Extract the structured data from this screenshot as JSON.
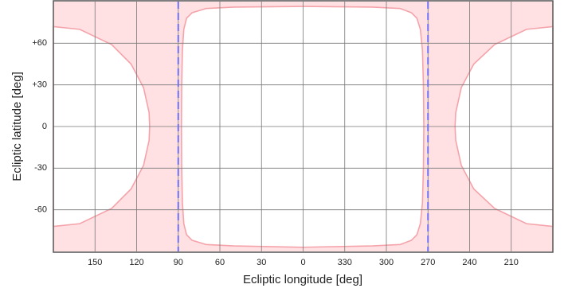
{
  "chart_data": {
    "type": "region",
    "x_label": "Ecliptic longitude [deg]",
    "y_label": "Ecliptic latitude [deg]",
    "xlim": [
      180,
      -180
    ],
    "ylim": [
      -90,
      90
    ],
    "xticks": [
      150,
      120,
      90,
      60,
      30,
      0,
      {
        "value": -30,
        "label": "330"
      },
      {
        "value": -60,
        "label": "300"
      },
      {
        "value": -90,
        "label": "270"
      },
      {
        "value": -120,
        "label": "240"
      },
      {
        "value": -150,
        "label": "210"
      }
    ],
    "yticks": [
      {
        "value": 60,
        "label": "+60"
      },
      {
        "value": 30,
        "label": "+30"
      },
      0,
      -30,
      -60
    ],
    "grid": true,
    "shade_color": "#ffe1e4",
    "boundary_color": "#f5a3aa",
    "regions": [
      {
        "x": [
          87.7,
          87.5,
          87,
          86,
          84,
          80,
          70,
          50,
          0,
          -50,
          -70,
          -78,
          -82,
          -84.5,
          -86,
          -86.7,
          -87,
          -86.7,
          -86,
          -84.5,
          -82,
          -78,
          -70,
          -50,
          0,
          50,
          70,
          80,
          84,
          86,
          87,
          87.5
        ],
        "y": [
          0,
          30,
          55,
          70,
          78,
          82,
          85,
          86,
          86.5,
          86,
          85,
          82,
          78,
          70,
          55,
          30,
          0,
          -30,
          -55,
          -70,
          -78,
          -82,
          -85,
          -86,
          -87,
          -86,
          -85,
          -82,
          -78,
          -70,
          -55,
          -30
        ]
      },
      {
        "x": [
          180,
          161,
          138,
          124,
          115,
          111,
          110.6,
          111,
          115,
          124,
          138,
          161,
          180
        ],
        "y": [
          72,
          70,
          59,
          45,
          28,
          10,
          0,
          -10,
          -28,
          -45,
          -59,
          -70,
          -72
        ]
      },
      {
        "x": [
          -180,
          -161,
          -138,
          -123,
          -114,
          -110,
          -109.5,
          -110,
          -114,
          -123,
          -138,
          -161,
          -180
        ],
        "y": [
          72,
          70,
          59,
          45,
          28,
          10,
          0,
          -10,
          -28,
          -45,
          -59,
          -70,
          -72
        ]
      }
    ],
    "vlines": {
      "values": [
        90,
        -90
      ],
      "color": "#6f72f2"
    }
  }
}
